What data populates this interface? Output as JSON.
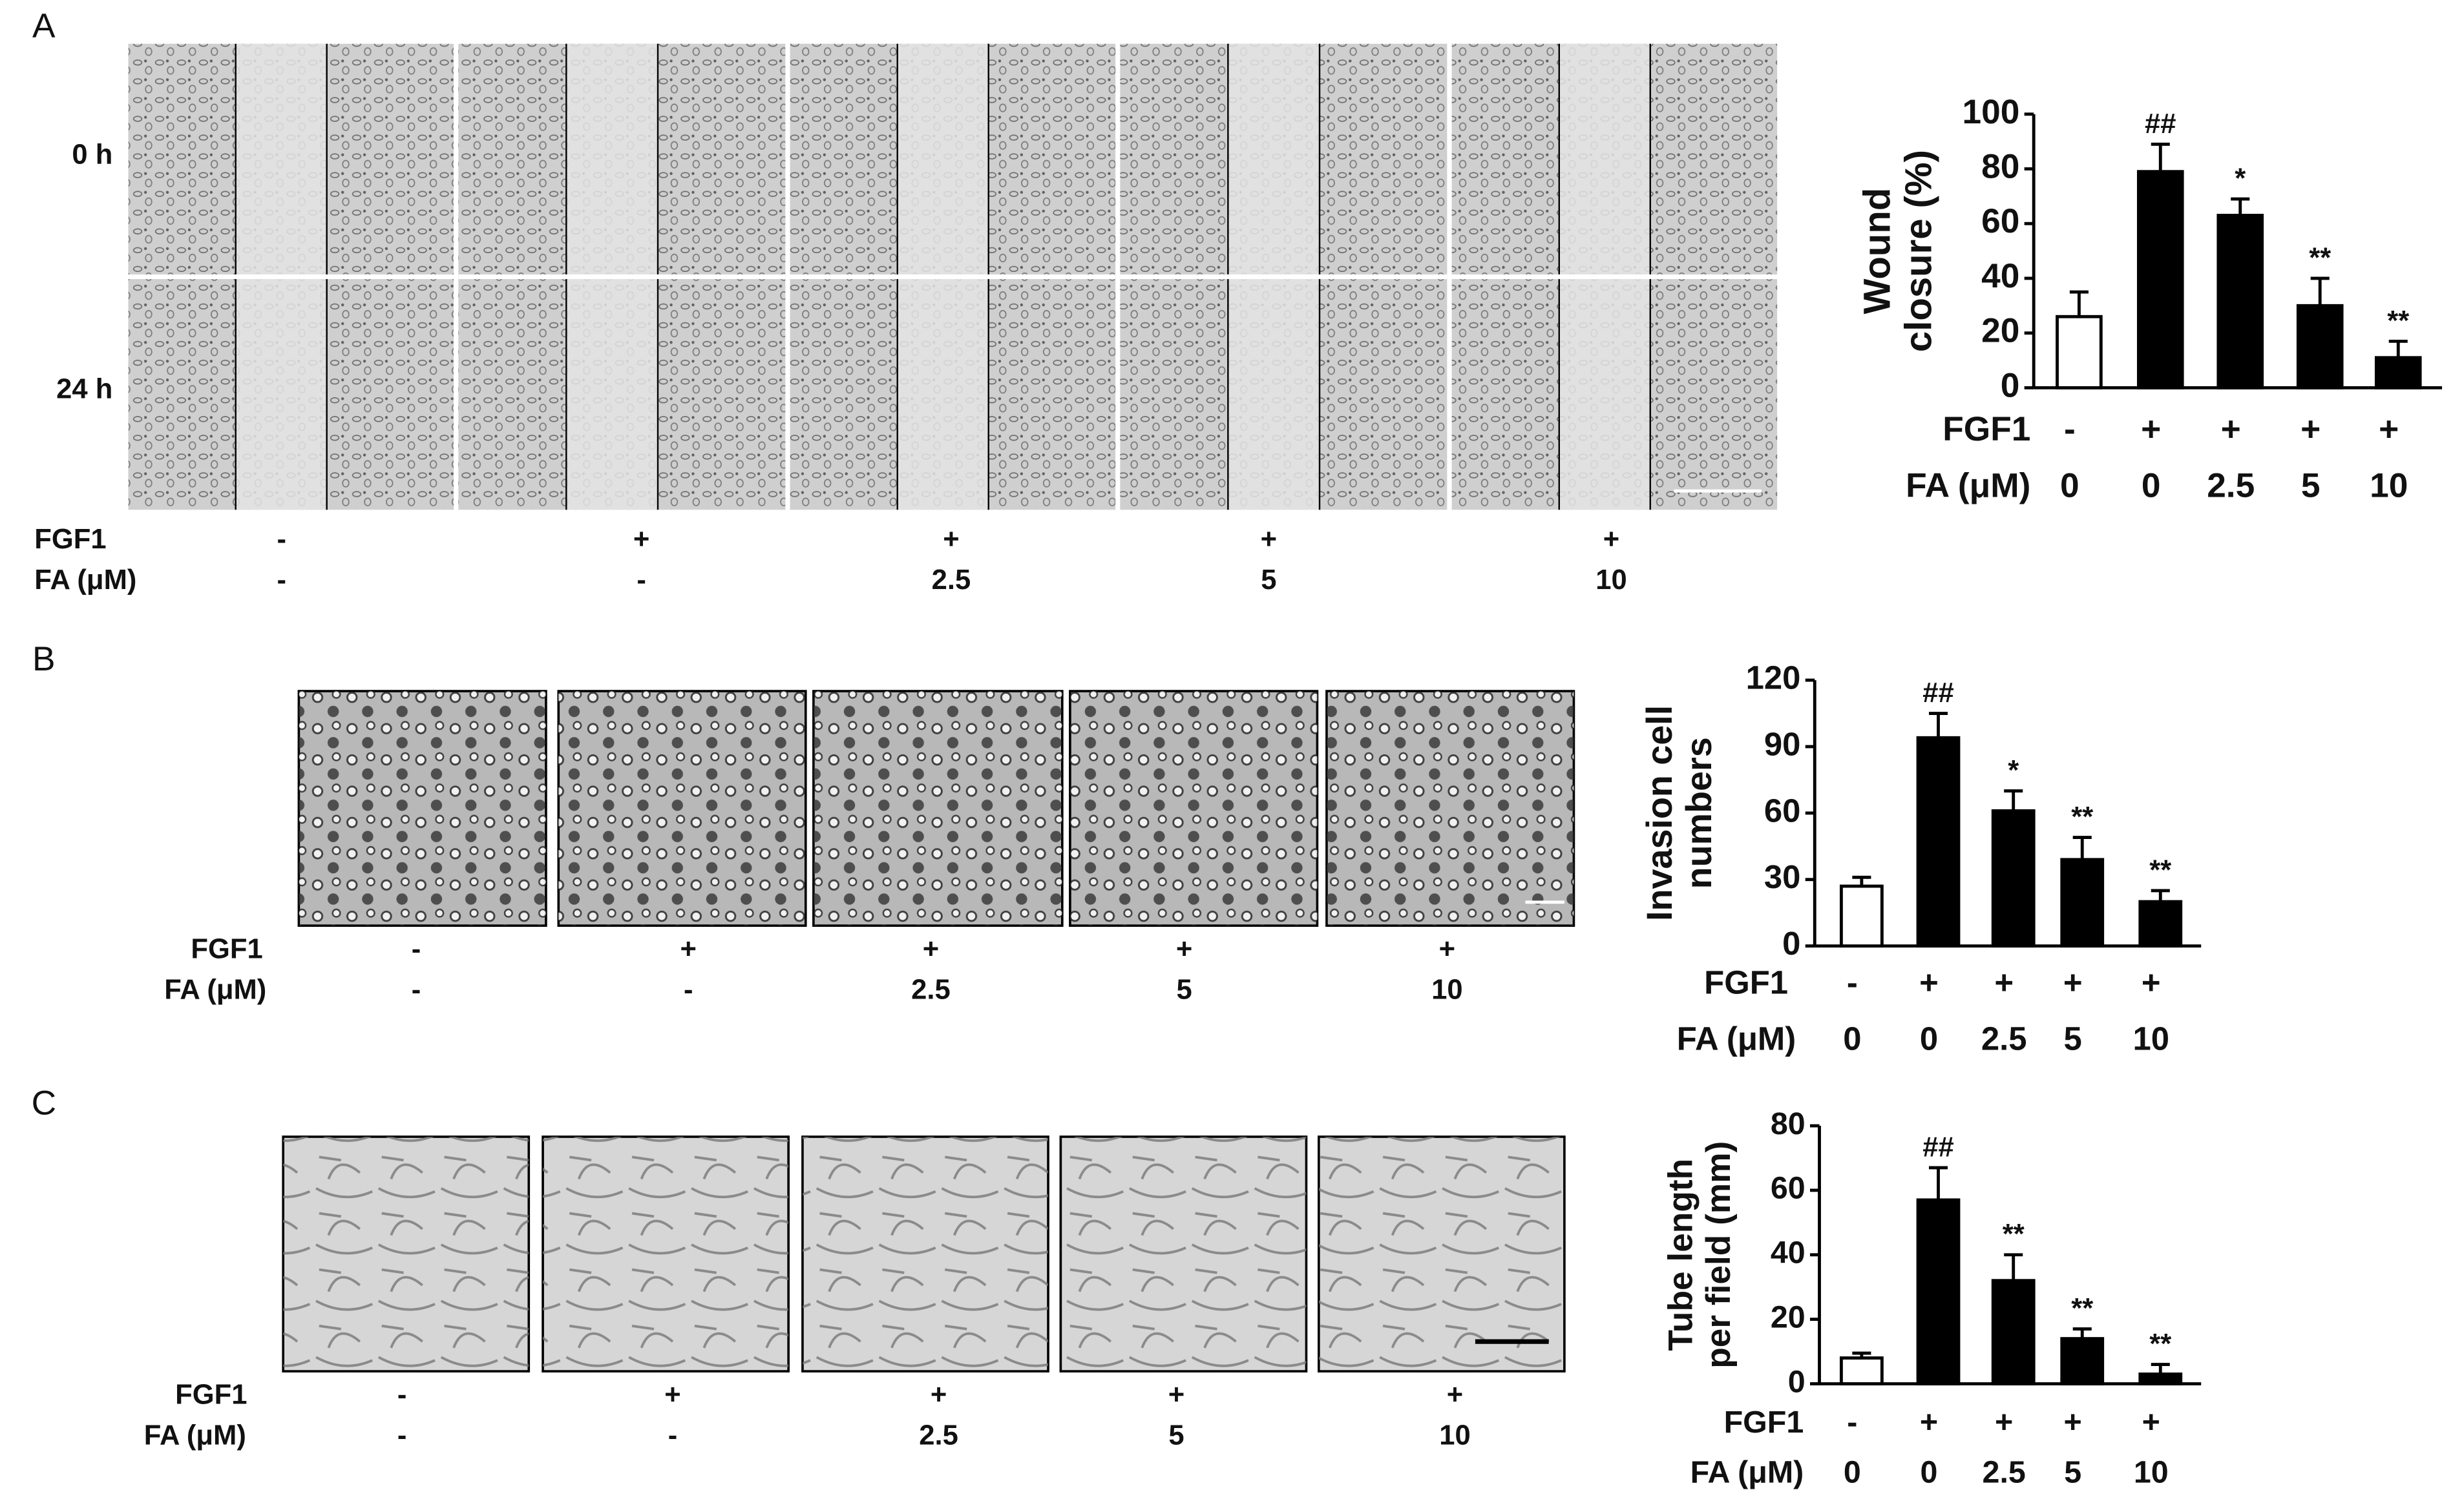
{
  "panels": [
    {
      "letter": "A",
      "rows": [
        "0 h",
        "24 h"
      ],
      "row_names": [
        "FGF1",
        "FA (μM)"
      ],
      "fgf1": [
        "-",
        "+",
        "+",
        "+",
        "+"
      ],
      "fa": [
        "-",
        "-",
        "2.5",
        "5",
        "10"
      ]
    },
    {
      "letter": "B",
      "row_names": [
        "FGF1",
        "FA (μM)"
      ],
      "fgf1": [
        "-",
        "+",
        "+",
        "+",
        "+"
      ],
      "fa": [
        "-",
        "-",
        "2.5",
        "5",
        "10"
      ]
    },
    {
      "letter": "C",
      "row_names": [
        "FGF1",
        "FA (μM)"
      ],
      "fgf1": [
        "-",
        "+",
        "+",
        "+",
        "+"
      ],
      "fa": [
        "-",
        "-",
        "2.5",
        "5",
        "10"
      ]
    }
  ],
  "chart_data": [
    {
      "type": "bar",
      "ylabel": [
        "Wound",
        "closure (%)"
      ],
      "row_names": [
        "FGF1",
        "FA (μM)"
      ],
      "categories": [
        "-",
        "+",
        "+",
        "+",
        "+"
      ],
      "categories2": [
        "0",
        "0",
        "2.5",
        "5",
        "10"
      ],
      "values": [
        26,
        79,
        63,
        30,
        11
      ],
      "errors": [
        9,
        10,
        6,
        10,
        6
      ],
      "annotations": [
        null,
        "##",
        "*",
        "**",
        "**"
      ],
      "colors": [
        "#ffffff",
        "#000000",
        "#000000",
        "#000000",
        "#000000"
      ],
      "ylim": [
        0,
        100
      ],
      "yticks": [
        0,
        20,
        40,
        60,
        80,
        100
      ]
    },
    {
      "type": "bar",
      "ylabel": [
        "Invasion cell",
        "numbers"
      ],
      "row_names": [
        "FGF1",
        "FA (μM)"
      ],
      "categories": [
        "-",
        "+",
        "+",
        "+",
        "+"
      ],
      "categories2": [
        "0",
        "0",
        "2.5",
        "5",
        "10"
      ],
      "values": [
        27,
        94,
        61,
        39,
        20
      ],
      "errors": [
        4,
        11,
        9,
        10,
        5
      ],
      "annotations": [
        null,
        "##",
        "*",
        "**",
        "**"
      ],
      "colors": [
        "#ffffff",
        "#000000",
        "#000000",
        "#000000",
        "#000000"
      ],
      "ylim": [
        0,
        120
      ],
      "yticks": [
        0,
        30,
        60,
        90,
        120
      ]
    },
    {
      "type": "bar",
      "ylabel": [
        "Tube length",
        "per field (mm)"
      ],
      "row_names": [
        "FGF1",
        "FA (μM)"
      ],
      "categories": [
        "-",
        "+",
        "+",
        "+",
        "+"
      ],
      "categories2": [
        "0",
        "0",
        "2.5",
        "5",
        "10"
      ],
      "values": [
        8,
        57,
        32,
        14,
        3
      ],
      "errors": [
        1.5,
        10,
        8,
        3,
        3
      ],
      "annotations": [
        null,
        "##",
        "**",
        "**",
        "**"
      ],
      "colors": [
        "#ffffff",
        "#000000",
        "#000000",
        "#000000",
        "#000000"
      ],
      "ylim": [
        0,
        80
      ],
      "yticks": [
        0,
        20,
        40,
        60,
        80
      ]
    }
  ]
}
